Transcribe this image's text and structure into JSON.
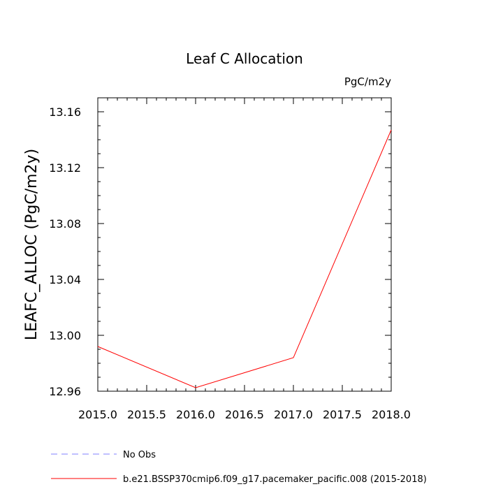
{
  "chart_data": {
    "type": "line",
    "title": "Leaf C Allocation",
    "units_label": "PgC/m2y",
    "xlabel": "",
    "ylabel": "LEAFC_ALLOC  (PgC/m2y)",
    "xlim": [
      2015.0,
      2018.0
    ],
    "ylim": [
      12.96,
      13.17
    ],
    "x_major_ticks": [
      2015.0,
      2015.5,
      2016.0,
      2016.5,
      2017.0,
      2017.5,
      2018.0
    ],
    "x_tick_labels": [
      "2015.0",
      "2015.5",
      "2016.0",
      "2016.5",
      "2017.0",
      "2017.5",
      "2018.0"
    ],
    "y_major_ticks": [
      12.96,
      13.0,
      13.04,
      13.08,
      13.12,
      13.16
    ],
    "y_tick_labels": [
      "12.96",
      "13.00",
      "13.04",
      "13.08",
      "13.12",
      "13.16"
    ],
    "series": [
      {
        "name": "b.e21.BSSP370cmip6.f09_g17.pacemaker_pacific.008 (2015-2018)",
        "color": "#ff0000",
        "style": "solid",
        "x": [
          2015.0,
          2016.0,
          2017.0,
          2018.0
        ],
        "values": [
          12.992,
          12.9625,
          12.984,
          13.147
        ]
      }
    ],
    "legend": [
      {
        "label": "No Obs",
        "color": "#8080ff",
        "style": "dashed"
      },
      {
        "label": "b.e21.BSSP370cmip6.f09_g17.pacemaker_pacific.008 (2015-2018)",
        "color": "#ff0000",
        "style": "solid"
      }
    ]
  }
}
